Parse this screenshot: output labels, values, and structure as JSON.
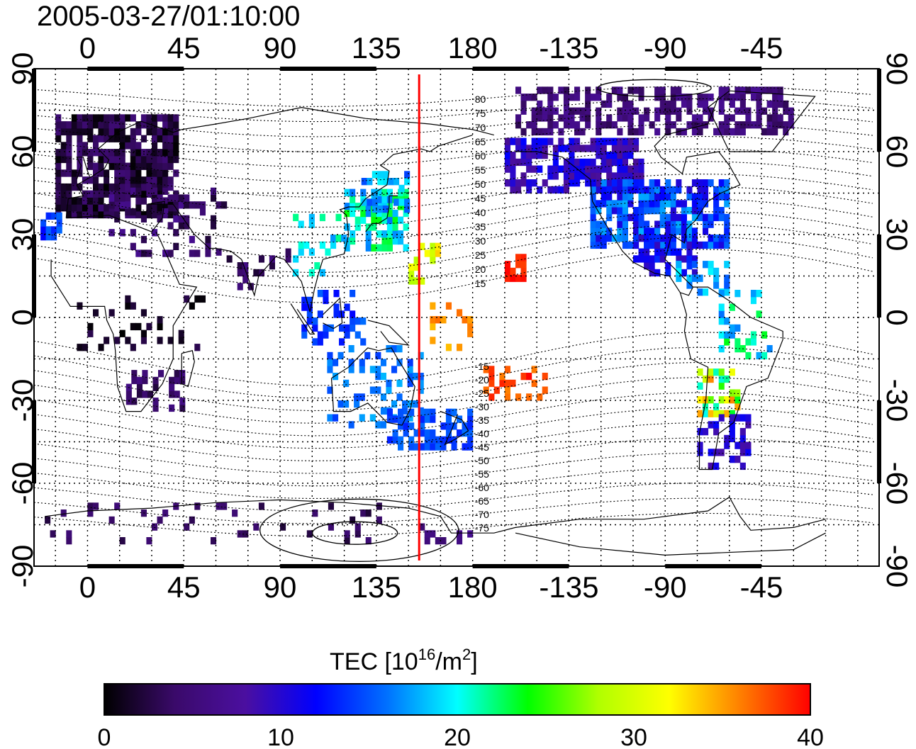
{
  "title": "2005-03-27/01:10:00",
  "colorbar": {
    "label": "TEC  [10",
    "label_sup": "16",
    "label_mid": "/m",
    "label_sup2": "2",
    "label_end": "]",
    "min": 0,
    "max": 40,
    "ticks": [
      "0",
      "10",
      "20",
      "30",
      "40"
    ],
    "colors": [
      "#000000",
      "#3a0a6a",
      "#4b0fa0",
      "#0000ff",
      "#0070ff",
      "#00ffff",
      "#00ff00",
      "#b0ff00",
      "#ffff00",
      "#ff8000",
      "#ff0000"
    ]
  },
  "map": {
    "lon_range": [
      -25,
      370
    ],
    "lat_range": [
      -90,
      90
    ],
    "lon_ticks_top": [
      "0",
      "45",
      "90",
      "135",
      "180",
      "-135",
      "-90",
      "-45"
    ],
    "lon_ticks_bottom": [
      "0",
      "45",
      "90",
      "135",
      "180",
      "-135",
      "-90",
      "-45"
    ],
    "lat_ticks_left": [
      "90",
      "60",
      "30",
      "0",
      "-30",
      "-60",
      "-90"
    ],
    "lat_ticks_right": [
      "90",
      "60",
      "30",
      "0",
      "-30",
      "-60",
      "-90"
    ],
    "terminator_lon": 155,
    "terminator_color": "#ff0000",
    "mlat_labels": [
      "80",
      "75",
      "70",
      "65",
      "60",
      "55",
      "50",
      "45",
      "40",
      "35",
      "30",
      "25",
      "20",
      "15",
      "-15",
      "-20",
      "-25",
      "-30",
      "-35",
      "-40",
      "-45",
      "-50",
      "-55",
      "-60",
      "-65",
      "-70",
      "-75"
    ]
  }
}
